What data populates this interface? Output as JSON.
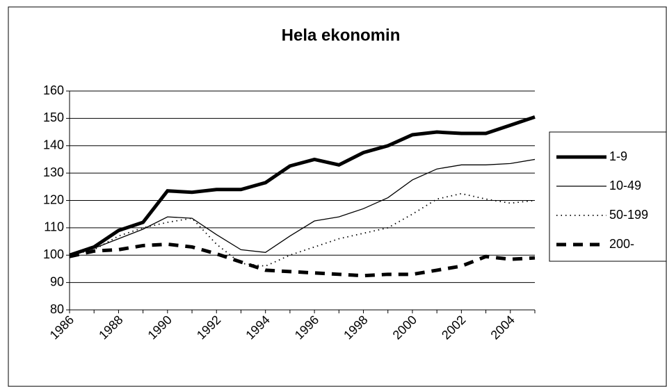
{
  "chart_data": {
    "type": "line",
    "title": "Hela ekonomin",
    "categories": [
      "1986",
      null,
      "1988",
      null,
      "1990",
      null,
      "1992",
      null,
      "1994",
      null,
      "1996",
      null,
      "1998",
      null,
      "2000",
      null,
      "2002",
      null,
      "2004",
      null
    ],
    "ylim": [
      80,
      160
    ],
    "yticks": [
      80,
      90,
      100,
      110,
      120,
      130,
      140,
      150,
      160
    ],
    "grid": true,
    "legend": "right",
    "series": [
      {
        "name": "1-9",
        "color": "#000000",
        "values": [
          100,
          103,
          109,
          112,
          123.5,
          123,
          124,
          124,
          126.5,
          132.6,
          135,
          133,
          137.5,
          140,
          144,
          145,
          144.5,
          144.5,
          147.5,
          150.5
        ]
      },
      {
        "name": "10-49",
        "color": "#000000",
        "values": [
          100,
          102.5,
          106,
          109.5,
          114,
          113.5,
          107.5,
          102,
          101,
          107,
          112.5,
          114,
          117,
          121,
          127.5,
          131.5,
          133,
          133,
          133.5,
          135
        ]
      },
      {
        "name": "50-199",
        "color": "#000000",
        "values": [
          100,
          102,
          107,
          110,
          112,
          113.5,
          104,
          97,
          96,
          100,
          103,
          106,
          108,
          110,
          115,
          120.5,
          122.5,
          120.5,
          119,
          120
        ]
      },
      {
        "name": "200-",
        "color": "#000000",
        "values": [
          99.5,
          101.5,
          102,
          103.5,
          104,
          103,
          100.5,
          97.5,
          94.5,
          94,
          93.5,
          93,
          92.5,
          93,
          93,
          94.5,
          96,
          99.5,
          98.5,
          99
        ]
      }
    ]
  }
}
